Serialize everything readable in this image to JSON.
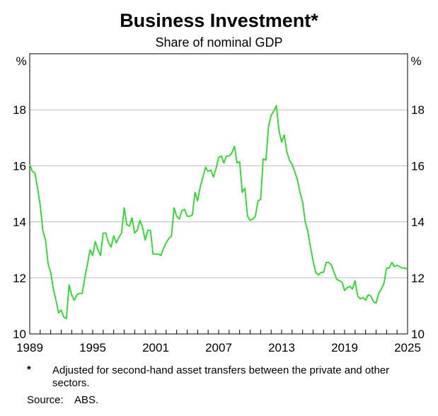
{
  "chart_data": {
    "type": "line",
    "title": "Business Investment*",
    "subtitle": "Share of nominal GDP",
    "y_unit": "%",
    "ylim": [
      10,
      20
    ],
    "yticks": [
      10,
      12,
      14,
      16,
      18
    ],
    "xlim": [
      1989,
      2025
    ],
    "xticks": [
      1989,
      1995,
      2001,
      2007,
      2013,
      2019,
      2025
    ],
    "grid": true,
    "line_color": "#22dd22",
    "series": [
      {
        "values": [
          [
            1989.0,
            16.05
          ],
          [
            1989.25,
            15.8
          ],
          [
            1989.5,
            15.75
          ],
          [
            1989.75,
            15.2
          ],
          [
            1990.0,
            14.6
          ],
          [
            1990.25,
            13.7
          ],
          [
            1990.5,
            13.35
          ],
          [
            1990.75,
            12.5
          ],
          [
            1991.0,
            12.2
          ],
          [
            1991.25,
            11.6
          ],
          [
            1991.5,
            11.2
          ],
          [
            1991.75,
            10.75
          ],
          [
            1992.0,
            10.85
          ],
          [
            1992.25,
            10.6
          ],
          [
            1992.5,
            10.55
          ],
          [
            1992.75,
            11.75
          ],
          [
            1993.0,
            11.4
          ],
          [
            1993.25,
            11.2
          ],
          [
            1993.5,
            11.4
          ],
          [
            1993.75,
            11.45
          ],
          [
            1994.0,
            11.45
          ],
          [
            1994.25,
            12.0
          ],
          [
            1994.5,
            12.5
          ],
          [
            1994.75,
            13.0
          ],
          [
            1995.0,
            12.8
          ],
          [
            1995.25,
            13.3
          ],
          [
            1995.5,
            13.0
          ],
          [
            1995.75,
            12.8
          ],
          [
            1996.0,
            13.6
          ],
          [
            1996.25,
            13.6
          ],
          [
            1996.5,
            13.25
          ],
          [
            1996.75,
            13.1
          ],
          [
            1997.0,
            13.5
          ],
          [
            1997.25,
            13.25
          ],
          [
            1997.5,
            13.45
          ],
          [
            1997.75,
            13.6
          ],
          [
            1998.0,
            14.5
          ],
          [
            1998.25,
            13.9
          ],
          [
            1998.5,
            13.85
          ],
          [
            1998.75,
            14.15
          ],
          [
            1999.0,
            13.6
          ],
          [
            1999.25,
            13.7
          ],
          [
            1999.5,
            14.05
          ],
          [
            1999.75,
            13.8
          ],
          [
            2000.0,
            13.35
          ],
          [
            2000.25,
            13.7
          ],
          [
            2000.5,
            13.7
          ],
          [
            2000.75,
            12.85
          ],
          [
            2001.0,
            12.85
          ],
          [
            2001.25,
            12.85
          ],
          [
            2001.5,
            12.8
          ],
          [
            2001.75,
            13.05
          ],
          [
            2002.0,
            13.25
          ],
          [
            2002.25,
            13.4
          ],
          [
            2002.5,
            13.5
          ],
          [
            2002.75,
            14.5
          ],
          [
            2003.0,
            14.2
          ],
          [
            2003.25,
            14.1
          ],
          [
            2003.5,
            14.4
          ],
          [
            2003.75,
            14.45
          ],
          [
            2004.0,
            14.2
          ],
          [
            2004.25,
            14.2
          ],
          [
            2004.5,
            14.25
          ],
          [
            2004.75,
            15.05
          ],
          [
            2005.0,
            14.75
          ],
          [
            2005.25,
            15.25
          ],
          [
            2005.5,
            15.6
          ],
          [
            2005.75,
            15.95
          ],
          [
            2006.0,
            15.8
          ],
          [
            2006.25,
            15.85
          ],
          [
            2006.5,
            15.6
          ],
          [
            2006.75,
            15.9
          ],
          [
            2007.0,
            16.3
          ],
          [
            2007.25,
            16.35
          ],
          [
            2007.5,
            16.1
          ],
          [
            2007.75,
            16.35
          ],
          [
            2008.0,
            16.35
          ],
          [
            2008.25,
            16.45
          ],
          [
            2008.5,
            16.7
          ],
          [
            2008.75,
            16.1
          ],
          [
            2009.0,
            16.15
          ],
          [
            2009.25,
            15.05
          ],
          [
            2009.5,
            15.2
          ],
          [
            2009.75,
            14.2
          ],
          [
            2010.0,
            14.05
          ],
          [
            2010.25,
            14.1
          ],
          [
            2010.5,
            14.2
          ],
          [
            2010.75,
            14.75
          ],
          [
            2011.0,
            14.8
          ],
          [
            2011.25,
            16.25
          ],
          [
            2011.5,
            16.2
          ],
          [
            2011.75,
            17.4
          ],
          [
            2012.0,
            17.8
          ],
          [
            2012.25,
            17.95
          ],
          [
            2012.5,
            18.15
          ],
          [
            2012.75,
            17.25
          ],
          [
            2013.0,
            16.85
          ],
          [
            2013.25,
            17.1
          ],
          [
            2013.5,
            16.5
          ],
          [
            2013.75,
            16.2
          ],
          [
            2014.0,
            16.05
          ],
          [
            2014.25,
            15.8
          ],
          [
            2014.5,
            15.5
          ],
          [
            2014.75,
            15.05
          ],
          [
            2015.0,
            14.7
          ],
          [
            2015.25,
            14.0
          ],
          [
            2015.5,
            13.65
          ],
          [
            2015.75,
            13.1
          ],
          [
            2016.0,
            12.6
          ],
          [
            2016.25,
            12.2
          ],
          [
            2016.5,
            12.1
          ],
          [
            2016.75,
            12.2
          ],
          [
            2017.0,
            12.2
          ],
          [
            2017.25,
            12.55
          ],
          [
            2017.5,
            12.55
          ],
          [
            2017.75,
            12.45
          ],
          [
            2018.0,
            12.2
          ],
          [
            2018.25,
            11.95
          ],
          [
            2018.5,
            11.9
          ],
          [
            2018.75,
            11.85
          ],
          [
            2019.0,
            11.55
          ],
          [
            2019.25,
            11.65
          ],
          [
            2019.5,
            11.7
          ],
          [
            2019.75,
            11.6
          ],
          [
            2020.0,
            11.9
          ],
          [
            2020.25,
            11.35
          ],
          [
            2020.5,
            11.25
          ],
          [
            2020.75,
            11.3
          ],
          [
            2021.0,
            11.2
          ],
          [
            2021.25,
            11.4
          ],
          [
            2021.5,
            11.35
          ],
          [
            2021.75,
            11.15
          ],
          [
            2022.0,
            11.1
          ],
          [
            2022.25,
            11.45
          ],
          [
            2022.5,
            11.6
          ],
          [
            2022.75,
            11.8
          ],
          [
            2023.0,
            12.35
          ],
          [
            2023.25,
            12.35
          ],
          [
            2023.5,
            12.55
          ],
          [
            2023.75,
            12.4
          ],
          [
            2024.0,
            12.45
          ],
          [
            2024.25,
            12.4
          ],
          [
            2024.5,
            12.35
          ],
          [
            2024.75,
            12.35
          ],
          [
            2025.0,
            12.3
          ]
        ]
      }
    ]
  },
  "footnote": {
    "marker": "*",
    "text": "Adjusted for second-hand asset transfers between the private and other sectors."
  },
  "source": {
    "label": "Source:",
    "value": "ABS."
  }
}
